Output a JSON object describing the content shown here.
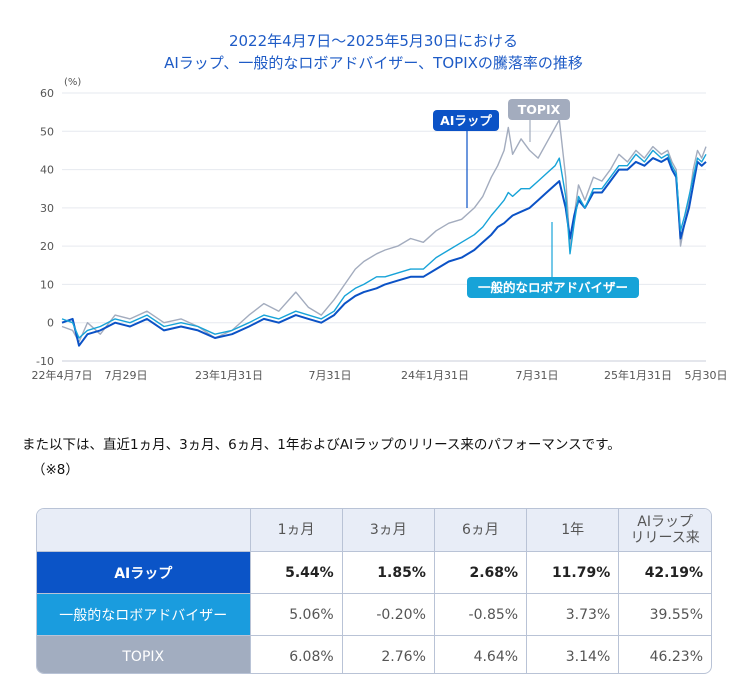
{
  "chart_data": {
    "type": "line",
    "title_line1": "2022年4月7日～2025年5月30日における",
    "title_line2": "AIラップ、一般的なロボアドバイザー、TOPIXの騰落率の推移",
    "yunit": "(%)",
    "ylim": [
      -10,
      60
    ],
    "yticks": [
      60,
      50,
      40,
      30,
      20,
      10,
      0,
      -10
    ],
    "xticks": [
      "22年4月7日",
      "7月29日",
      "23年1月31日",
      "7月31日",
      "24年1月31日",
      "7月31日",
      "25年1月31日",
      "5月30日"
    ],
    "grid": true,
    "legend": "callout-labels",
    "series": [
      {
        "name": "TOPIX",
        "color": "#a3acbe",
        "points": [
          [
            0,
            -1
          ],
          [
            5,
            -2
          ],
          [
            8,
            -5
          ],
          [
            12,
            0
          ],
          [
            18,
            -3
          ],
          [
            25,
            2
          ],
          [
            32,
            1
          ],
          [
            40,
            3
          ],
          [
            48,
            0
          ],
          [
            56,
            1
          ],
          [
            64,
            -1
          ],
          [
            72,
            -4
          ],
          [
            80,
            -2
          ],
          [
            88,
            2
          ],
          [
            95,
            5
          ],
          [
            102,
            3
          ],
          [
            110,
            8
          ],
          [
            116,
            4
          ],
          [
            122,
            2
          ],
          [
            128,
            6
          ],
          [
            133,
            10
          ],
          [
            138,
            14
          ],
          [
            142,
            16
          ],
          [
            148,
            18
          ],
          [
            152,
            19
          ],
          [
            158,
            20
          ],
          [
            164,
            22
          ],
          [
            170,
            21
          ],
          [
            176,
            24
          ],
          [
            182,
            26
          ],
          [
            188,
            27
          ],
          [
            194,
            30
          ],
          [
            198,
            33
          ],
          [
            202,
            38
          ],
          [
            205,
            41
          ],
          [
            208,
            45
          ],
          [
            210,
            51
          ],
          [
            212,
            44
          ],
          [
            216,
            48
          ],
          [
            220,
            45
          ],
          [
            224,
            43
          ],
          [
            228,
            47
          ],
          [
            232,
            51
          ],
          [
            234,
            53
          ],
          [
            237,
            38
          ],
          [
            239,
            20
          ],
          [
            241,
            28
          ],
          [
            243,
            36
          ],
          [
            246,
            32
          ],
          [
            250,
            38
          ],
          [
            254,
            37
          ],
          [
            258,
            40
          ],
          [
            262,
            44
          ],
          [
            266,
            42
          ],
          [
            270,
            45
          ],
          [
            274,
            43
          ],
          [
            278,
            46
          ],
          [
            282,
            44
          ],
          [
            285,
            45
          ],
          [
            287,
            42
          ],
          [
            289,
            40
          ],
          [
            291,
            20
          ],
          [
            293,
            26
          ],
          [
            295,
            32
          ],
          [
            297,
            40
          ],
          [
            299,
            45
          ],
          [
            301,
            43
          ],
          [
            303,
            46
          ]
        ]
      },
      {
        "name": "AIラップ",
        "color": "#0b52c6",
        "points": [
          [
            0,
            0
          ],
          [
            5,
            1
          ],
          [
            8,
            -6
          ],
          [
            12,
            -3
          ],
          [
            18,
            -2
          ],
          [
            25,
            0
          ],
          [
            32,
            -1
          ],
          [
            40,
            1
          ],
          [
            48,
            -2
          ],
          [
            56,
            -1
          ],
          [
            64,
            -2
          ],
          [
            72,
            -4
          ],
          [
            80,
            -3
          ],
          [
            88,
            -1
          ],
          [
            95,
            1
          ],
          [
            102,
            0
          ],
          [
            110,
            2
          ],
          [
            116,
            1
          ],
          [
            122,
            0
          ],
          [
            128,
            2
          ],
          [
            133,
            5
          ],
          [
            138,
            7
          ],
          [
            142,
            8
          ],
          [
            148,
            9
          ],
          [
            152,
            10
          ],
          [
            158,
            11
          ],
          [
            164,
            12
          ],
          [
            170,
            12
          ],
          [
            176,
            14
          ],
          [
            182,
            16
          ],
          [
            188,
            17
          ],
          [
            194,
            19
          ],
          [
            198,
            21
          ],
          [
            202,
            23
          ],
          [
            205,
            25
          ],
          [
            208,
            26
          ],
          [
            210,
            27
          ],
          [
            212,
            28
          ],
          [
            216,
            29
          ],
          [
            220,
            30
          ],
          [
            224,
            32
          ],
          [
            228,
            34
          ],
          [
            232,
            36
          ],
          [
            234,
            37
          ],
          [
            237,
            30
          ],
          [
            239,
            22
          ],
          [
            241,
            28
          ],
          [
            243,
            32
          ],
          [
            246,
            30
          ],
          [
            250,
            34
          ],
          [
            254,
            34
          ],
          [
            258,
            37
          ],
          [
            262,
            40
          ],
          [
            266,
            40
          ],
          [
            270,
            42
          ],
          [
            274,
            41
          ],
          [
            278,
            43
          ],
          [
            282,
            42
          ],
          [
            285,
            43
          ],
          [
            287,
            40
          ],
          [
            289,
            38
          ],
          [
            291,
            22
          ],
          [
            293,
            26
          ],
          [
            295,
            30
          ],
          [
            297,
            36
          ],
          [
            299,
            42
          ],
          [
            301,
            41
          ],
          [
            303,
            42
          ]
        ]
      },
      {
        "name": "一般的なロボアドバイザー",
        "color": "#17a3d8",
        "points": [
          [
            0,
            1
          ],
          [
            5,
            0
          ],
          [
            8,
            -4
          ],
          [
            12,
            -2
          ],
          [
            18,
            -1
          ],
          [
            25,
            1
          ],
          [
            32,
            0
          ],
          [
            40,
            2
          ],
          [
            48,
            -1
          ],
          [
            56,
            0
          ],
          [
            64,
            -1
          ],
          [
            72,
            -3
          ],
          [
            80,
            -2
          ],
          [
            88,
            0
          ],
          [
            95,
            2
          ],
          [
            102,
            1
          ],
          [
            110,
            3
          ],
          [
            116,
            2
          ],
          [
            122,
            1
          ],
          [
            128,
            3
          ],
          [
            133,
            7
          ],
          [
            138,
            9
          ],
          [
            142,
            10
          ],
          [
            148,
            12
          ],
          [
            152,
            12
          ],
          [
            158,
            13
          ],
          [
            164,
            14
          ],
          [
            170,
            14
          ],
          [
            176,
            17
          ],
          [
            182,
            19
          ],
          [
            188,
            21
          ],
          [
            194,
            23
          ],
          [
            198,
            25
          ],
          [
            202,
            28
          ],
          [
            205,
            30
          ],
          [
            208,
            32
          ],
          [
            210,
            34
          ],
          [
            212,
            33
          ],
          [
            216,
            35
          ],
          [
            220,
            35
          ],
          [
            224,
            37
          ],
          [
            228,
            39
          ],
          [
            232,
            41
          ],
          [
            234,
            43
          ],
          [
            237,
            33
          ],
          [
            239,
            18
          ],
          [
            241,
            26
          ],
          [
            243,
            33
          ],
          [
            246,
            30
          ],
          [
            250,
            35
          ],
          [
            254,
            35
          ],
          [
            258,
            38
          ],
          [
            262,
            41
          ],
          [
            266,
            41
          ],
          [
            270,
            44
          ],
          [
            274,
            42
          ],
          [
            278,
            45
          ],
          [
            282,
            43
          ],
          [
            285,
            44
          ],
          [
            287,
            41
          ],
          [
            289,
            39
          ],
          [
            291,
            24
          ],
          [
            293,
            28
          ],
          [
            295,
            33
          ],
          [
            297,
            38
          ],
          [
            299,
            43
          ],
          [
            301,
            42
          ],
          [
            303,
            44
          ]
        ]
      }
    ],
    "callouts": [
      {
        "label": "AIラップ",
        "color": "#0b52c6"
      },
      {
        "label": "TOPIX",
        "color": "#a3acbe"
      },
      {
        "label": "一般的なロボアドバイザー",
        "color": "#17a3d8"
      }
    ]
  },
  "note_line1": "また以下は、直近1ヵ月、3ヵ月、6ヵ月、1年およびAIラップのリリース来のパフォーマンスです。",
  "note_line2": "（※8）",
  "table": {
    "headers": [
      "1ヵ月",
      "3ヵ月",
      "6ヵ月",
      "1年",
      "AIラップ\nリリース来"
    ],
    "rows": [
      {
        "label": "AIラップ",
        "values": [
          "5.44%",
          "1.85%",
          "2.68%",
          "11.79%",
          "42.19%"
        ]
      },
      {
        "label": "一般的なロボアドバイザー",
        "values": [
          "5.06%",
          "-0.20%",
          "-0.85%",
          "3.73%",
          "39.55%"
        ]
      },
      {
        "label": "TOPIX",
        "values": [
          "6.08%",
          "2.76%",
          "4.64%",
          "3.14%",
          "46.23%"
        ]
      }
    ]
  }
}
